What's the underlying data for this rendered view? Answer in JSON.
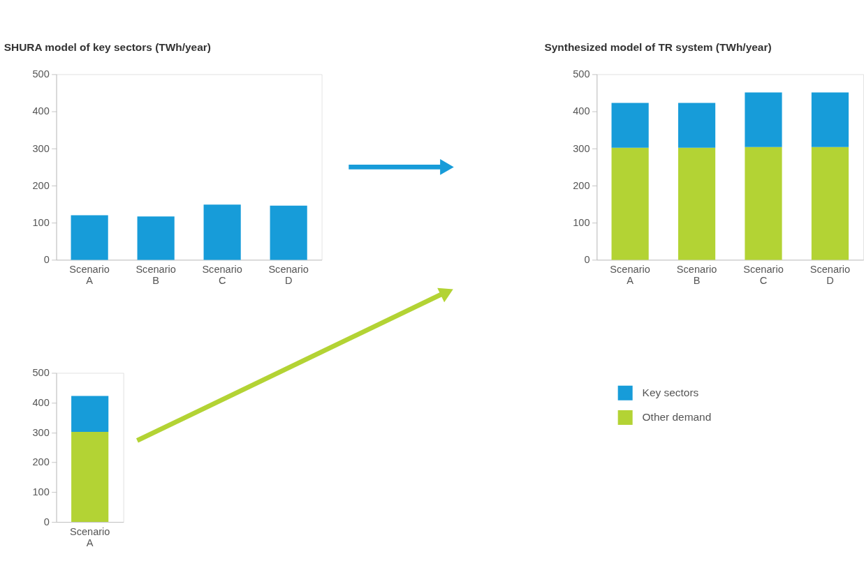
{
  "chart_data": [
    {
      "type": "bar",
      "title": "SHURA model of key sectors (TWh/year)",
      "categories": [
        "Scenario A",
        "Scenario B",
        "Scenario C",
        "Scenario D"
      ],
      "values": [
        120,
        117,
        149,
        146
      ],
      "color": "#179cd9",
      "ylim": [
        0,
        500
      ],
      "yticks": [
        0,
        100,
        200,
        300,
        400,
        500
      ],
      "grid": false
    },
    {
      "type": "bar",
      "title": "Synthesized model of TR system (TWh/year)",
      "categories": [
        "Scenario A",
        "Scenario B",
        "Scenario C",
        "Scenario D"
      ],
      "stacked": true,
      "series": [
        {
          "name": "Other demand",
          "color": "#b3d334",
          "values": [
            302,
            302,
            304,
            304
          ]
        },
        {
          "name": "Key sectors",
          "color": "#179cd9",
          "values": [
            121,
            121,
            147,
            147
          ]
        }
      ],
      "ylim": [
        0,
        500
      ],
      "yticks": [
        0,
        100,
        200,
        300,
        400,
        500
      ],
      "grid": false,
      "legend": "bottom"
    },
    {
      "type": "bar",
      "categories": [
        "Scenario A"
      ],
      "stacked": true,
      "series": [
        {
          "color": "#b3d334",
          "values": [
            302
          ]
        },
        {
          "color": "#179cd9",
          "values": [
            121
          ]
        }
      ],
      "ylim": [
        0,
        500
      ],
      "yticks": [
        0,
        100,
        200,
        300,
        400,
        500
      ],
      "grid": false
    }
  ]
}
